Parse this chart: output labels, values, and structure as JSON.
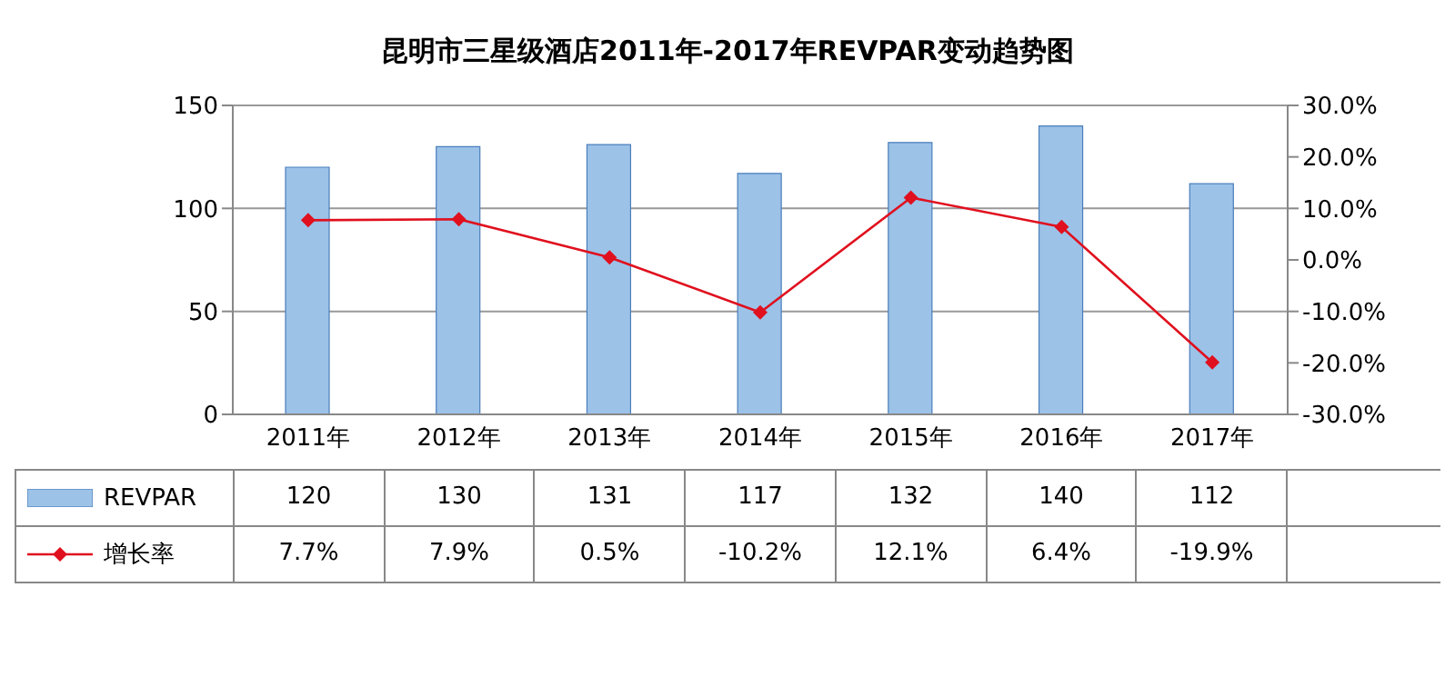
{
  "chart_data": {
    "type": "bar",
    "title": "昆明市三星级酒店2011年-2017年REVPAR变动趋势图",
    "categories": [
      "2011年",
      "2012年",
      "2013年",
      "2014年",
      "2015年",
      "2016年",
      "2017年"
    ],
    "series": [
      {
        "name": "REVPAR",
        "color": "#9cc2e8",
        "values": [
          120,
          130,
          131,
          117,
          132,
          140,
          112
        ],
        "value_labels": [
          "120",
          "130",
          "131",
          "117",
          "132",
          "140",
          "112"
        ]
      },
      {
        "name": "增长率",
        "type": "line",
        "axis": "y2",
        "color": "#e0101e",
        "values": [
          7.7,
          7.9,
          0.5,
          -10.2,
          12.1,
          6.4,
          -19.9
        ],
        "value_labels": [
          "7.7%",
          "7.9%",
          "0.5%",
          "-10.2%",
          "12.1%",
          "6.4%",
          "-19.9%"
        ]
      }
    ],
    "ylim": [
      0,
      150
    ],
    "yticks": [
      0,
      50,
      100,
      150
    ],
    "y2lim": [
      -30,
      30
    ],
    "y2ticks": [
      {
        "value": -30,
        "label": "-30.0%"
      },
      {
        "value": -20,
        "label": "-20.0%"
      },
      {
        "value": -10,
        "label": "-10.0%"
      },
      {
        "value": 0,
        "label": "0.0%"
      },
      {
        "value": 10,
        "label": "10.0%"
      },
      {
        "value": 20,
        "label": "20.0%"
      },
      {
        "value": 30,
        "label": "30.0%"
      }
    ],
    "grid": "y",
    "legend": "bottom",
    "marker": "diamond"
  }
}
